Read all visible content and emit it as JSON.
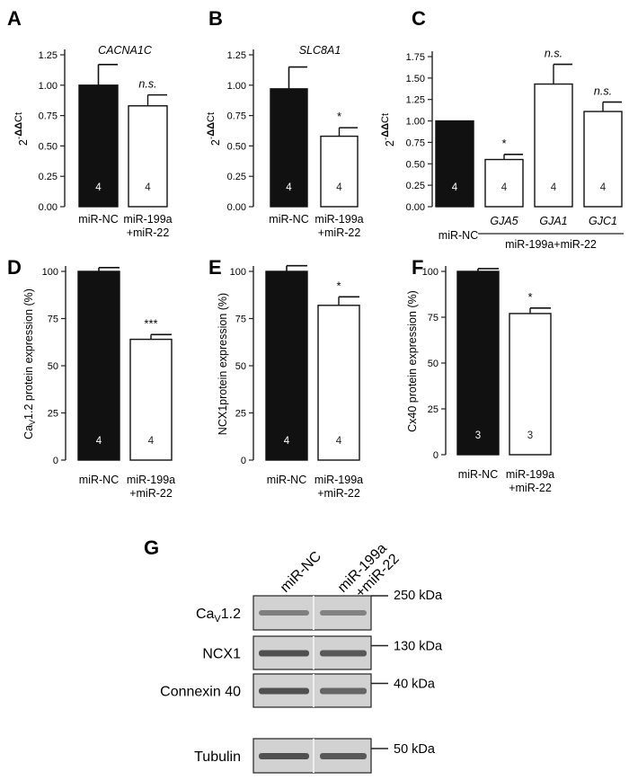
{
  "chart_data": [
    {
      "panel": "A",
      "type": "bar",
      "title": "CACNA1C",
      "ylabel": "2^-ΔΔCt",
      "ylim": [
        0,
        1.25
      ],
      "yticks": [
        "0.00",
        "0.25",
        "0.50",
        "0.75",
        "1.00",
        "1.25"
      ],
      "categories": [
        "miR-NC",
        "miR-199a\n+miR-22"
      ],
      "values": [
        1.0,
        0.83
      ],
      "errors": [
        0.17,
        0.09
      ],
      "n": [
        "4",
        "4"
      ],
      "sig": [
        "",
        "n.s."
      ]
    },
    {
      "panel": "B",
      "type": "bar",
      "title": "SLC8A1",
      "ylabel": "2^-ΔΔCt",
      "ylim": [
        0,
        1.25
      ],
      "yticks": [
        "0.00",
        "0.25",
        "0.50",
        "0.75",
        "1.00",
        "1.25"
      ],
      "categories": [
        "miR-NC",
        "miR-199a\n+miR-22"
      ],
      "values": [
        0.97,
        0.58
      ],
      "errors": [
        0.18,
        0.07
      ],
      "n": [
        "4",
        "4"
      ],
      "sig": [
        "",
        "*"
      ]
    },
    {
      "panel": "C",
      "type": "bar",
      "title": "",
      "ylabel": "2^-ΔΔCt",
      "ylim": [
        0,
        1.75
      ],
      "yticks": [
        "0.00",
        "0.25",
        "0.50",
        "0.75",
        "1.00",
        "1.25",
        "1.50",
        "1.75"
      ],
      "categories": [
        "miR-NC",
        "GJA5",
        "GJA1",
        "GJC1"
      ],
      "group_label": "miR-199a+miR-22",
      "values": [
        1.0,
        0.55,
        1.43,
        1.11
      ],
      "errors": [
        0.0,
        0.06,
        0.23,
        0.11
      ],
      "n": [
        "4",
        "4",
        "4",
        "4"
      ],
      "sig": [
        "",
        "*",
        "n.s.",
        "n.s."
      ]
    },
    {
      "panel": "D",
      "type": "bar",
      "title": "",
      "ylabel": "CaV1.2 protein expression (%)",
      "ylim": [
        0,
        110
      ],
      "yticks": [
        "0",
        "25",
        "50",
        "75",
        "100"
      ],
      "categories": [
        "miR-NC",
        "miR-199a\n+miR-22"
      ],
      "values": [
        100,
        64
      ],
      "errors": [
        2,
        2.5
      ],
      "n": [
        "4",
        "4"
      ],
      "sig": [
        "",
        "***"
      ]
    },
    {
      "panel": "E",
      "type": "bar",
      "title": "",
      "ylabel": "NCX1protein expression (%)",
      "ylim": [
        0,
        110
      ],
      "yticks": [
        "0",
        "25",
        "50",
        "75",
        "100"
      ],
      "categories": [
        "miR-NC",
        "miR-199a\n+miR-22"
      ],
      "values": [
        100,
        82
      ],
      "errors": [
        3,
        4.5
      ],
      "n": [
        "4",
        "4"
      ],
      "sig": [
        "",
        "*"
      ]
    },
    {
      "panel": "F",
      "type": "bar",
      "title": "",
      "ylabel": "Cx40 protein expression (%)",
      "ylim": [
        0,
        110
      ],
      "yticks": [
        "0",
        "25",
        "50",
        "75",
        "100"
      ],
      "categories": [
        "miR-NC",
        "miR-199a\n+miR-22"
      ],
      "values": [
        100,
        77
      ],
      "errors": [
        1.5,
        3
      ],
      "n": [
        "3",
        "3"
      ],
      "sig": [
        "",
        "*"
      ]
    }
  ],
  "western_blot": {
    "panel": "G",
    "lanes": [
      "miR-NC",
      "miR-199a\n+miR-22"
    ],
    "rows": [
      {
        "label": "CaV1.2",
        "kda": "250 kDa"
      },
      {
        "label": "NCX1",
        "kda": "130 kDa"
      },
      {
        "label": "Connexin 40",
        "kda": "40 kDa"
      },
      {
        "label": "Tubulin",
        "kda": "50 kDa"
      }
    ]
  },
  "colors": {
    "control_bar": "#111111",
    "treated_bar": "#ffffff",
    "axis": "#222222",
    "blot_bg": "#d2d2d2",
    "blot_band": "#3a3a3a"
  }
}
